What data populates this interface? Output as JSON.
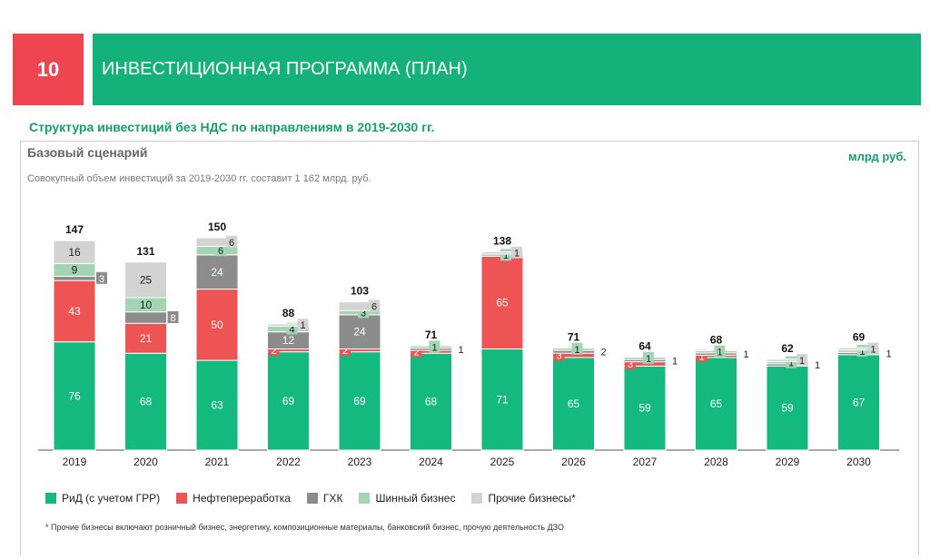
{
  "header": {
    "number": "10",
    "title": "ИНВЕСТИЦИОННАЯ ПРОГРАММА (ПЛАН)"
  },
  "subtitle": "Структура инвестиций без НДС по направлениям в 2019-2030 гг.",
  "scenario": "Базовый сценарий",
  "unit": "млрд руб.",
  "note": "Совокупный объем инвестиций за 2019-2030 гг. составит 1 162 млрд. руб.",
  "footnote": "* Прочие бизнесы включают розничный бизнес, энергетику, композиционные материалы, банковский бизнес, прочую деятельность ДЗО",
  "chart_data": {
    "type": "bar",
    "stacked": true,
    "categories": [
      "2019",
      "2020",
      "2021",
      "2022",
      "2023",
      "2024",
      "2025",
      "2026",
      "2027",
      "2028",
      "2029",
      "2030"
    ],
    "series": [
      {
        "name": "РиД (с учетом ГРР)",
        "color": "#14b980",
        "values": [
          76,
          68,
          63,
          69,
          69,
          68,
          71,
          65,
          59,
          65,
          59,
          67
        ]
      },
      {
        "name": "Нефтепереработка",
        "color": "#ef5454",
        "values": [
          43,
          21,
          50,
          2,
          2,
          2,
          65,
          3,
          3,
          1,
          0,
          0
        ]
      },
      {
        "name": "ГХК",
        "color": "#8c8c8c",
        "values": [
          3,
          8,
          24,
          12,
          24,
          1,
          0,
          2,
          1,
          1,
          1,
          1
        ]
      },
      {
        "name": "Шинный бизнес",
        "color": "#a3d4b3",
        "values": [
          9,
          10,
          6,
          4,
          3,
          1,
          1,
          1,
          1,
          1,
          1,
          1
        ]
      },
      {
        "name": "Прочие бизнесы*",
        "color": "#d3d3d3",
        "values": [
          16,
          25,
          6,
          1,
          6,
          0,
          1,
          0,
          0,
          0,
          1,
          1
        ]
      }
    ],
    "totals": [
      147,
      131,
      150,
      88,
      103,
      71,
      138,
      71,
      64,
      68,
      62,
      69
    ]
  }
}
